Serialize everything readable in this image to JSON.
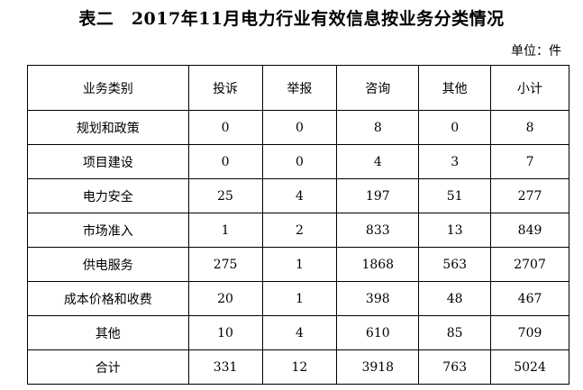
{
  "title": "表二　2017年11月电力行业有效信息按业务分类情况",
  "unit": "单位：件",
  "table": {
    "headers": [
      "业务类别",
      "投诉",
      "举报",
      "咨询",
      "其他",
      "小计"
    ],
    "rows": [
      [
        "规划和政策",
        "0",
        "0",
        "8",
        "0",
        "8"
      ],
      [
        "项目建设",
        "0",
        "0",
        "4",
        "3",
        "7"
      ],
      [
        "电力安全",
        "25",
        "4",
        "197",
        "51",
        "277"
      ],
      [
        "市场准入",
        "1",
        "2",
        "833",
        "13",
        "849"
      ],
      [
        "供电服务",
        "275",
        "1",
        "1868",
        "563",
        "2707"
      ],
      [
        "成本价格和收费",
        "20",
        "1",
        "398",
        "48",
        "467"
      ],
      [
        "其他",
        "10",
        "4",
        "610",
        "85",
        "709"
      ],
      [
        "合计",
        "331",
        "12",
        "3918",
        "763",
        "5024"
      ]
    ]
  }
}
